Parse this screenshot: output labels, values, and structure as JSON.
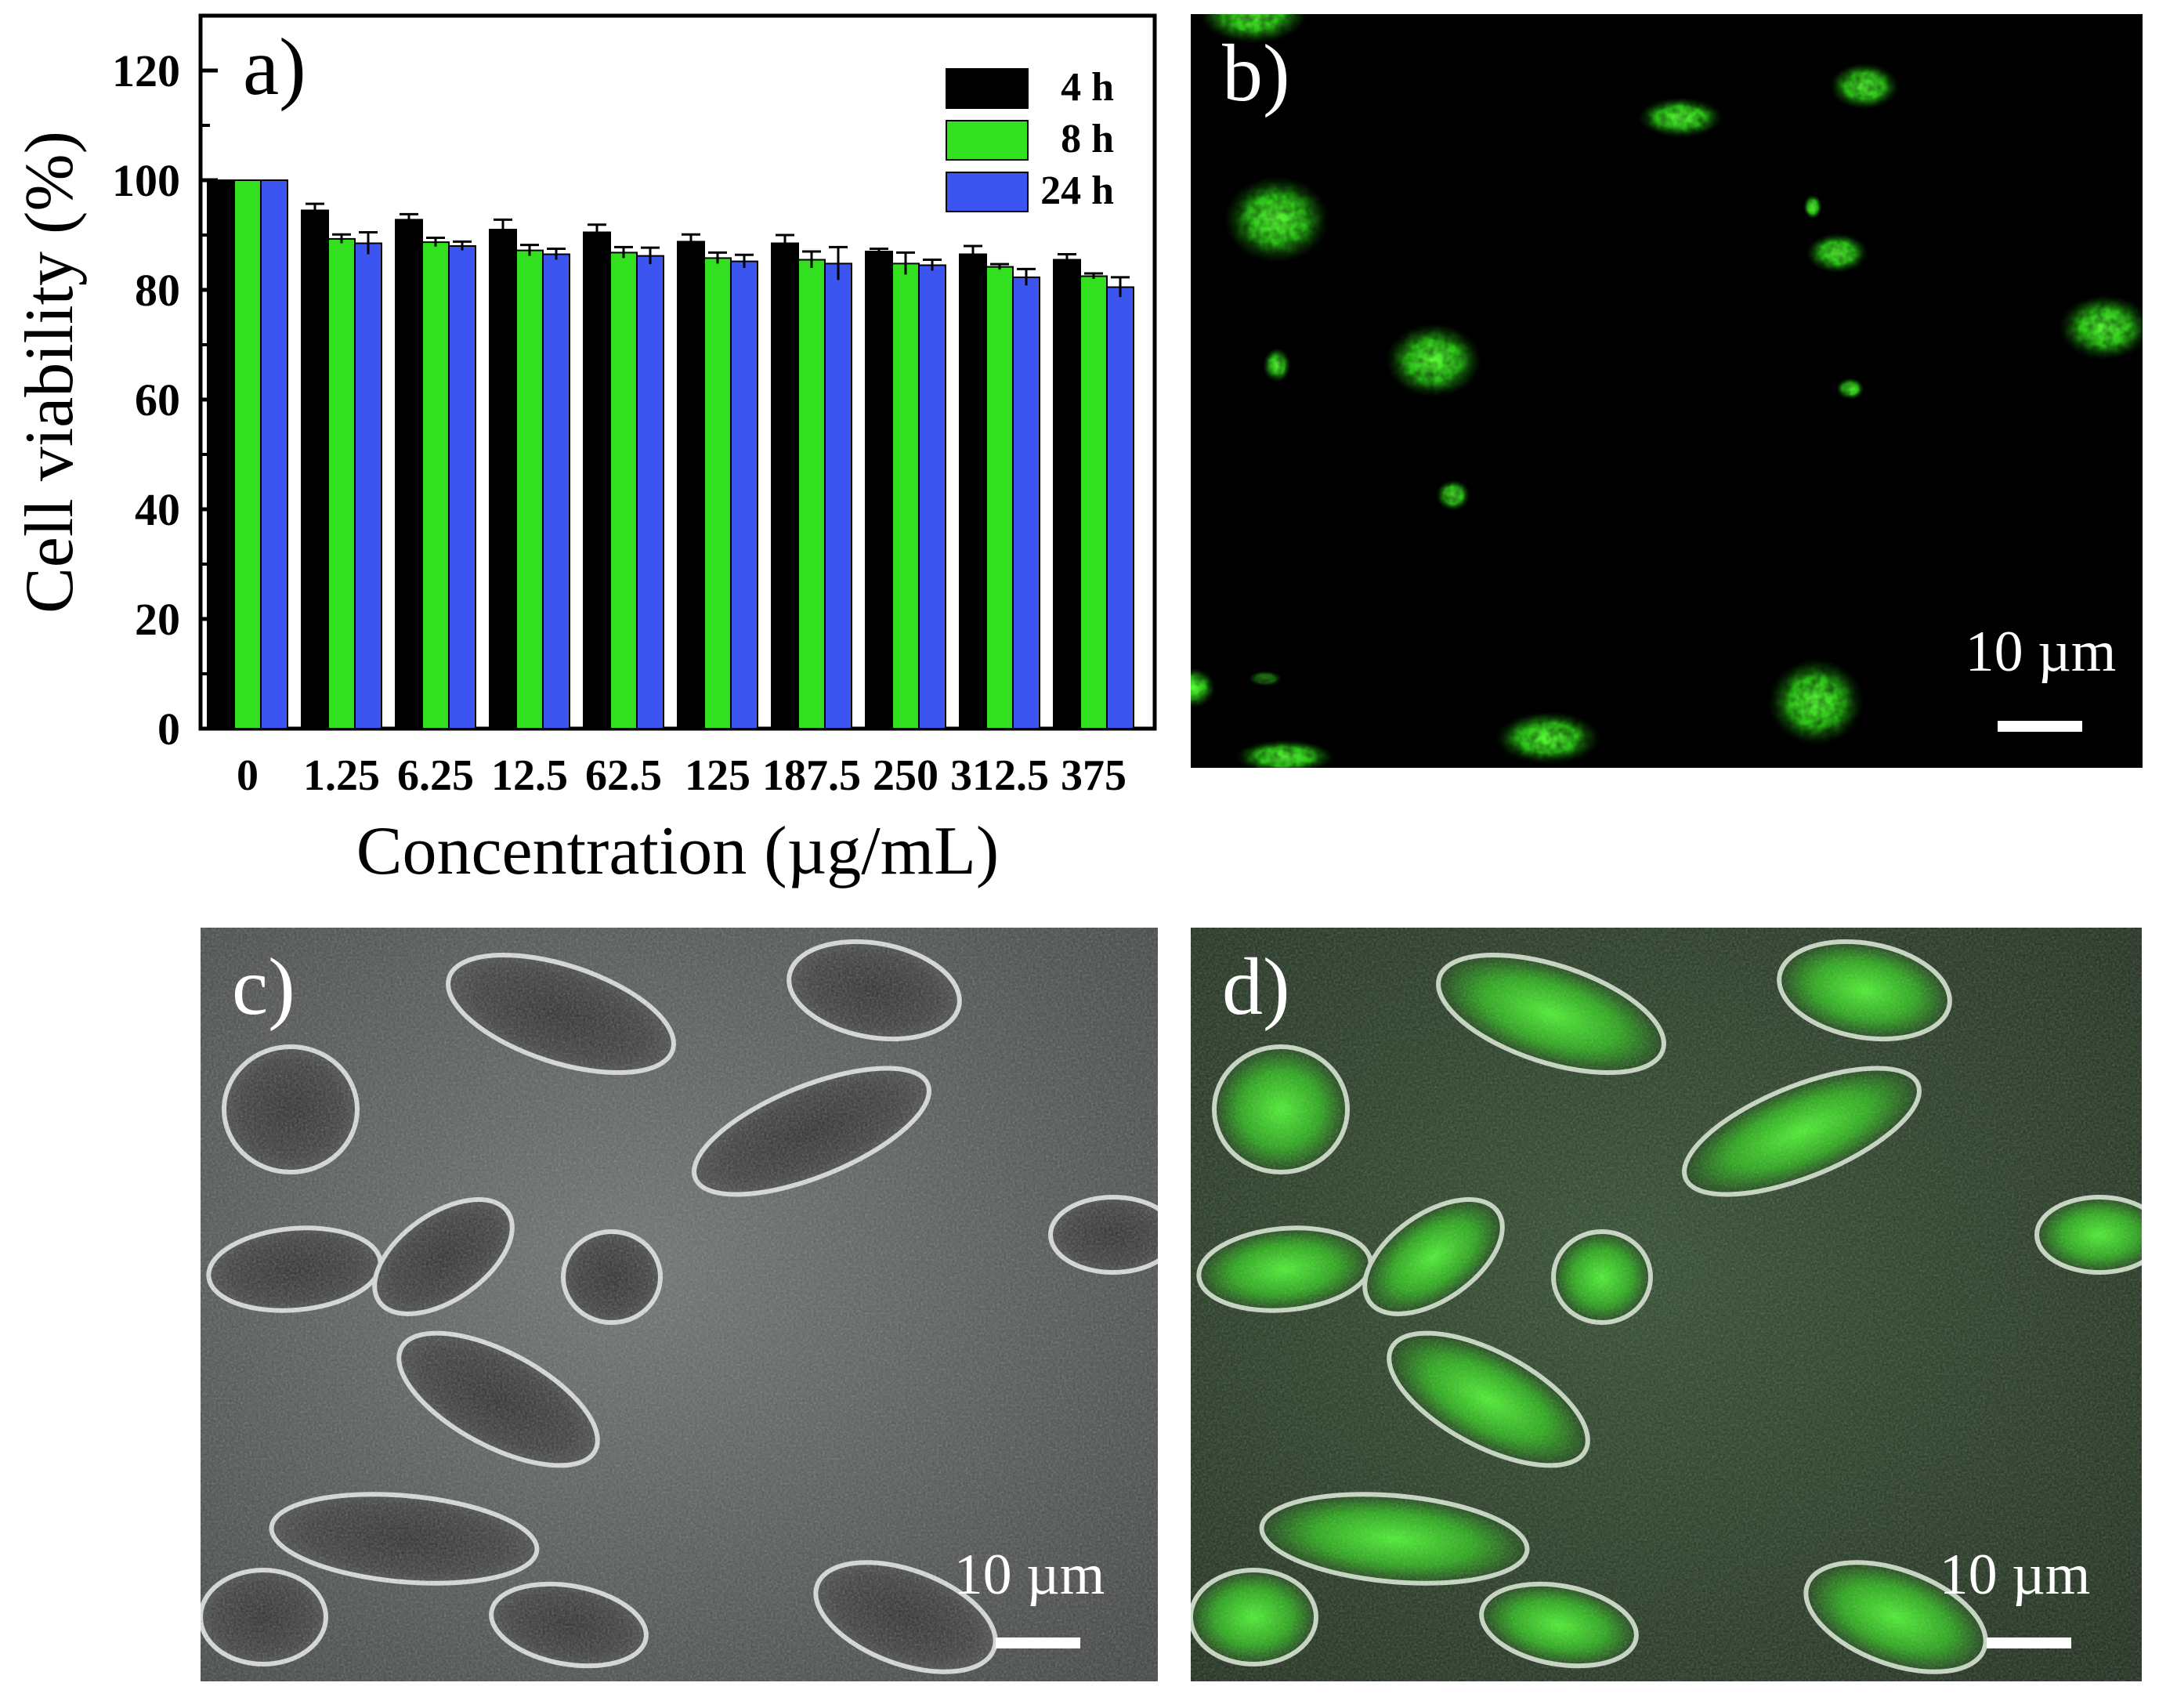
{
  "chart_data": {
    "type": "bar",
    "panel_label": "a)",
    "xlabel": "Concentration (µg/mL)",
    "ylabel": "Cell viability (%)",
    "ylim": [
      0,
      130
    ],
    "yticks": [
      "0",
      "20",
      "40",
      "60",
      "80",
      "100",
      "120"
    ],
    "categories": [
      "0",
      "1.25",
      "6.25",
      "12.5",
      "62.5",
      "125",
      "187.5",
      "250",
      "312.5",
      "375"
    ],
    "legend_position": "top-right",
    "series": [
      {
        "name": "4 h",
        "color": "#000000",
        "values": [
          100,
          94.5,
          92.8,
          91.0,
          90.5,
          88.8,
          88.5,
          87.0,
          86.5,
          85.5
        ],
        "errors": [
          0,
          1.2,
          1.0,
          1.8,
          1.4,
          1.3,
          1.5,
          0.5,
          1.5,
          1.0
        ]
      },
      {
        "name": "8 h",
        "color": "#33e020",
        "values": [
          100,
          89.3,
          88.7,
          87.2,
          86.8,
          85.8,
          85.5,
          84.8,
          84.2,
          82.5
        ],
        "errors": [
          0,
          0.8,
          0.8,
          1.0,
          1.0,
          1.0,
          1.5,
          2.0,
          0.5,
          0.5
        ]
      },
      {
        "name": "24 h",
        "color": "#3c55f0",
        "values": [
          100,
          88.5,
          88.0,
          86.5,
          86.2,
          85.2,
          84.8,
          84.5,
          82.3,
          80.5
        ],
        "errors": [
          0,
          2.0,
          0.8,
          1.0,
          1.5,
          1.2,
          3.0,
          1.0,
          1.5,
          1.8
        ]
      }
    ]
  },
  "images": [
    {
      "panel_label": "b)",
      "scale_bar": "10 µm",
      "modality": "fluorescence"
    },
    {
      "panel_label": "c)",
      "scale_bar": "10 µm",
      "modality": "bright-field"
    },
    {
      "panel_label": "d)",
      "scale_bar": "10 µm",
      "modality": "merged"
    }
  ]
}
